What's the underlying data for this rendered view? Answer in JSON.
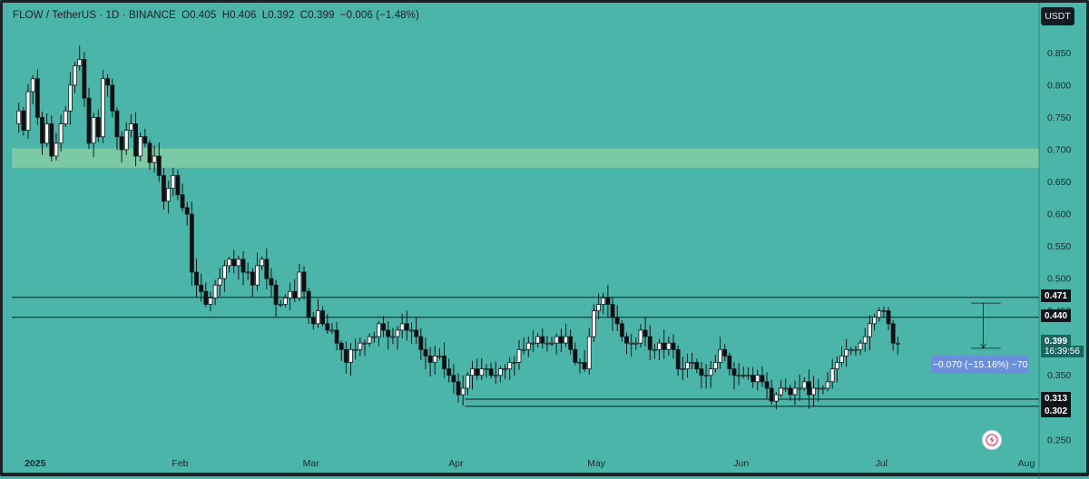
{
  "legend": {
    "symbol": "FLOW / TetherUS · 1D · BINANCE",
    "open": "O0.405",
    "high": "H0.406",
    "low": "L0.392",
    "close": "C0.399",
    "change": "−0.006 (−1.48%)"
  },
  "currency_label": "USDT",
  "countdown": "16:39:56",
  "measure_label": "−0.070 (−15.16%) −70",
  "icons": {
    "alert": "bolt-alert-icon"
  },
  "colors": {
    "background": "#4bb5a9",
    "zone": "#7cc9a6",
    "candle_up": "#ffffff",
    "candle_down": "#0d0f12",
    "wick": "#141719",
    "measure": "#6c8fdb",
    "price_tag_current": "#1d6660",
    "price_tag_level": "#111519"
  },
  "chart_data": {
    "type": "candlestick",
    "interval": "1D",
    "ylim": [
      0.23,
      0.88
    ],
    "y_ticks": [
      0.25,
      0.3,
      0.35,
      0.4,
      0.45,
      0.5,
      0.55,
      0.6,
      0.65,
      0.7,
      0.75,
      0.8,
      0.85
    ],
    "y_tick_labels": [
      "0.250",
      "0.300",
      "0.350",
      "0.400",
      "0.450",
      "0.500",
      "0.550",
      "0.600",
      "0.650",
      "0.700",
      "0.750",
      "0.800",
      "0.850"
    ],
    "x_start_date": "2024-12-27",
    "x_end_date": "2025-08-01",
    "x_ticks": [
      {
        "date": "2025-01-01",
        "label": "2025",
        "bold": true
      },
      {
        "date": "2025-02-01",
        "label": "Feb"
      },
      {
        "date": "2025-03-01",
        "label": "Mar"
      },
      {
        "date": "2025-04-01",
        "label": "Apr"
      },
      {
        "date": "2025-05-01",
        "label": "May"
      },
      {
        "date": "2025-06-01",
        "label": "Jun"
      },
      {
        "date": "2025-07-01",
        "label": "Jul"
      },
      {
        "date": "2025-08-01",
        "label": "Aug"
      }
    ],
    "resistance_zone": [
      0.672,
      0.702
    ],
    "horizontal_levels": [
      {
        "value": 0.471,
        "label": "0.471"
      },
      {
        "value": 0.44,
        "label": "0.440"
      },
      {
        "value": 0.313,
        "label": "0.313"
      },
      {
        "value": 0.302,
        "label": "0.302"
      }
    ],
    "current_price": {
      "value": 0.399,
      "label": "0.399"
    },
    "measure": {
      "from_date": "2025-07-21",
      "to_date": "2025-07-23",
      "from": 0.462,
      "to": 0.392
    },
    "candles_close": [
      0.76,
      0.73,
      0.79,
      0.81,
      0.75,
      0.71,
      0.74,
      0.69,
      0.71,
      0.74,
      0.76,
      0.8,
      0.83,
      0.84,
      0.78,
      0.71,
      0.75,
      0.72,
      0.81,
      0.8,
      0.76,
      0.72,
      0.7,
      0.73,
      0.74,
      0.69,
      0.72,
      0.71,
      0.68,
      0.69,
      0.66,
      0.62,
      0.64,
      0.66,
      0.63,
      0.61,
      0.6,
      0.51,
      0.49,
      0.48,
      0.46,
      0.47,
      0.49,
      0.5,
      0.52,
      0.53,
      0.52,
      0.53,
      0.51,
      0.51,
      0.49,
      0.52,
      0.53,
      0.5,
      0.49,
      0.46,
      0.46,
      0.47,
      0.48,
      0.47,
      0.51,
      0.48,
      0.44,
      0.43,
      0.45,
      0.43,
      0.42,
      0.42,
      0.4,
      0.39,
      0.37,
      0.39,
      0.39,
      0.4,
      0.4,
      0.41,
      0.41,
      0.43,
      0.42,
      0.41,
      0.41,
      0.42,
      0.43,
      0.42,
      0.42,
      0.41,
      0.39,
      0.38,
      0.37,
      0.38,
      0.38,
      0.36,
      0.35,
      0.34,
      0.32,
      0.33,
      0.35,
      0.36,
      0.35,
      0.36,
      0.36,
      0.35,
      0.35,
      0.36,
      0.36,
      0.37,
      0.37,
      0.39,
      0.39,
      0.4,
      0.4,
      0.41,
      0.4,
      0.4,
      0.4,
      0.41,
      0.4,
      0.41,
      0.39,
      0.37,
      0.37,
      0.36,
      0.41,
      0.45,
      0.46,
      0.47,
      0.46,
      0.44,
      0.43,
      0.41,
      0.4,
      0.4,
      0.4,
      0.42,
      0.41,
      0.39,
      0.39,
      0.4,
      0.39,
      0.4,
      0.39,
      0.36,
      0.36,
      0.37,
      0.37,
      0.36,
      0.35,
      0.35,
      0.36,
      0.37,
      0.39,
      0.38,
      0.36,
      0.35,
      0.35,
      0.35,
      0.35,
      0.34,
      0.35,
      0.34,
      0.33,
      0.31,
      0.32,
      0.33,
      0.33,
      0.32,
      0.33,
      0.33,
      0.34,
      0.32,
      0.33,
      0.33,
      0.33,
      0.34,
      0.36,
      0.37,
      0.38,
      0.39,
      0.39,
      0.39,
      0.4,
      0.41,
      0.43,
      0.44,
      0.45,
      0.45,
      0.43,
      0.4,
      0.4
    ]
  }
}
